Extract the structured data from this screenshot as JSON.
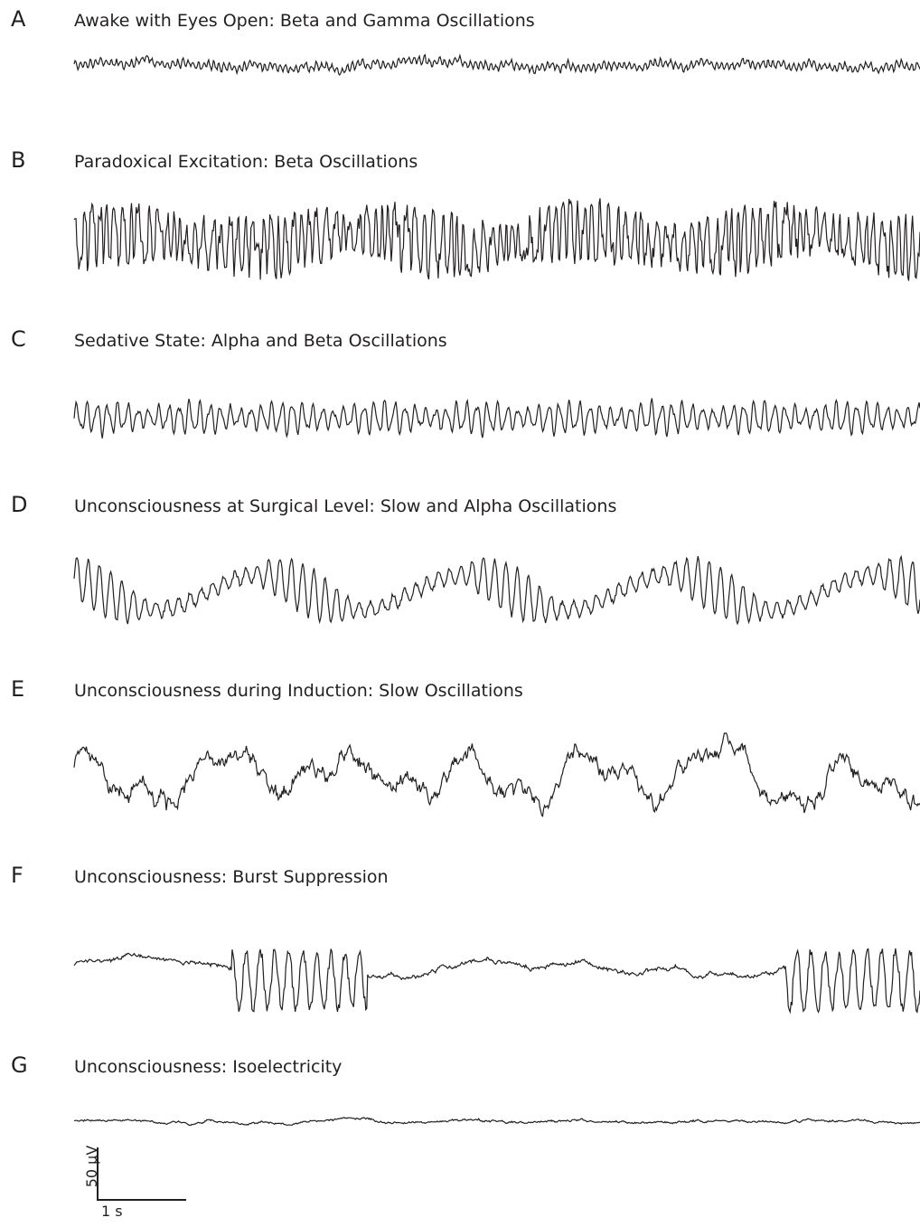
{
  "chart_data": {
    "type": "line",
    "panels": [
      {
        "letter": "A",
        "title": "Awake with Eyes Open: Beta and Gamma Oscillations",
        "pattern": "beta-gamma",
        "amplitude_uV": 10
      },
      {
        "letter": "B",
        "title": "Paradoxical Excitation: Beta Oscillations",
        "pattern": "beta",
        "amplitude_uV": 40
      },
      {
        "letter": "C",
        "title": "Sedative State: Alpha and Beta Oscillations",
        "pattern": "alpha-beta",
        "amplitude_uV": 20
      },
      {
        "letter": "D",
        "title": "Unconsciousness at Surgical Level: Slow and Alpha Oscillations",
        "pattern": "slow-alpha",
        "amplitude_uV": 35
      },
      {
        "letter": "E",
        "title": "Unconsciousness during Induction: Slow Oscillations",
        "pattern": "slow",
        "amplitude_uV": 45
      },
      {
        "letter": "F",
        "title": "Unconsciousness: Burst Suppression",
        "pattern": "burst-suppression",
        "amplitude_uV": 45
      },
      {
        "letter": "G",
        "title": "Unconsciousness: Isoelectricity",
        "pattern": "isoelectric",
        "amplitude_uV": 4
      }
    ],
    "scale_bar": {
      "amplitude_label": "50 µV",
      "time_label": "1 s",
      "amplitude_uV": 50,
      "time_s": 1
    },
    "duration_s": 7.5,
    "line_color": "#231f20"
  }
}
